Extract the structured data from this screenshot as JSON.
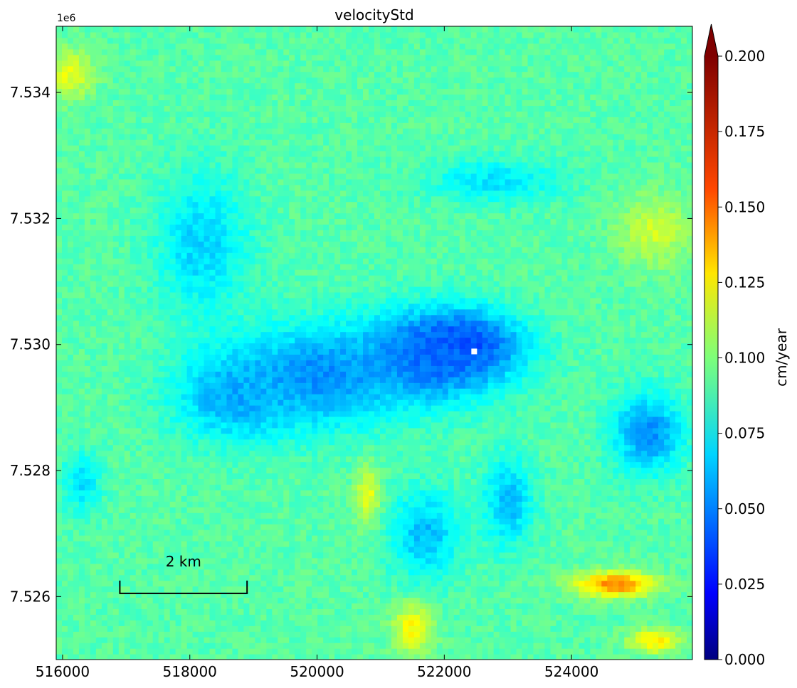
{
  "chart_data": {
    "type": "heatmap",
    "title": "velocityStd",
    "colorbar": {
      "label": "cm/year",
      "range": [
        0.0,
        0.2
      ],
      "ticks": [
        0.0,
        0.025,
        0.05,
        0.075,
        0.1,
        0.125,
        0.15,
        0.175,
        0.2
      ],
      "tick_labels": [
        "0.000",
        "0.025",
        "0.050",
        "0.075",
        "0.100",
        "0.125",
        "0.150",
        "0.175",
        "0.200"
      ],
      "extend": "max",
      "colormap": "jet"
    },
    "x_axis": {
      "range": [
        515900,
        525900
      ],
      "ticks": [
        516000,
        518000,
        520000,
        522000,
        524000
      ],
      "tick_labels": [
        "516000",
        "518000",
        "520000",
        "522000",
        "524000"
      ]
    },
    "y_axis": {
      "range": [
        7525000,
        7535050
      ],
      "ticks": [
        7526000,
        7528000,
        7530000,
        7532000,
        7534000
      ],
      "tick_labels": [
        "7.526",
        "7.528",
        "7.530",
        "7.532",
        "7.534"
      ],
      "offset_label": "1e6"
    },
    "background_value": 0.092,
    "features": [
      {
        "kind": "low",
        "x": 522250,
        "y": 7530000,
        "rx": 1100,
        "ry": 620,
        "value": 0.03
      },
      {
        "kind": "low",
        "x": 521800,
        "y": 7529800,
        "rx": 1500,
        "ry": 900,
        "value": 0.045
      },
      {
        "kind": "low",
        "x": 520000,
        "y": 7529500,
        "rx": 1700,
        "ry": 1000,
        "value": 0.052
      },
      {
        "kind": "low",
        "x": 518700,
        "y": 7529200,
        "rx": 1200,
        "ry": 900,
        "value": 0.058
      },
      {
        "kind": "low",
        "x": 518200,
        "y": 7531600,
        "rx": 900,
        "ry": 1400,
        "value": 0.066
      },
      {
        "kind": "low",
        "x": 522800,
        "y": 7532600,
        "rx": 1300,
        "ry": 450,
        "value": 0.07
      },
      {
        "kind": "low",
        "x": 525200,
        "y": 7528600,
        "rx": 700,
        "ry": 800,
        "value": 0.052
      },
      {
        "kind": "low",
        "x": 521700,
        "y": 7527000,
        "rx": 700,
        "ry": 900,
        "value": 0.062
      },
      {
        "kind": "low",
        "x": 523000,
        "y": 7527500,
        "rx": 500,
        "ry": 900,
        "value": 0.062
      },
      {
        "kind": "low",
        "x": 516300,
        "y": 7527800,
        "rx": 400,
        "ry": 600,
        "value": 0.07
      },
      {
        "kind": "high",
        "x": 516100,
        "y": 7534300,
        "rx": 500,
        "ry": 500,
        "value": 0.12
      },
      {
        "kind": "high",
        "x": 525300,
        "y": 7531800,
        "rx": 700,
        "ry": 700,
        "value": 0.115
      },
      {
        "kind": "high",
        "x": 521500,
        "y": 7525500,
        "rx": 400,
        "ry": 500,
        "value": 0.125
      },
      {
        "kind": "high",
        "x": 520800,
        "y": 7527600,
        "rx": 250,
        "ry": 600,
        "value": 0.12
      },
      {
        "kind": "high",
        "x": 524700,
        "y": 7526200,
        "rx": 800,
        "ry": 250,
        "value": 0.15
      },
      {
        "kind": "high",
        "x": 525300,
        "y": 7525300,
        "rx": 500,
        "ry": 250,
        "value": 0.13
      }
    ],
    "nan_pixels": [
      {
        "x": 522470,
        "y": 7529890
      }
    ],
    "scale_bar": {
      "label": "2 km",
      "x_start": 516900,
      "x_end": 518900,
      "y": 7526050
    }
  }
}
